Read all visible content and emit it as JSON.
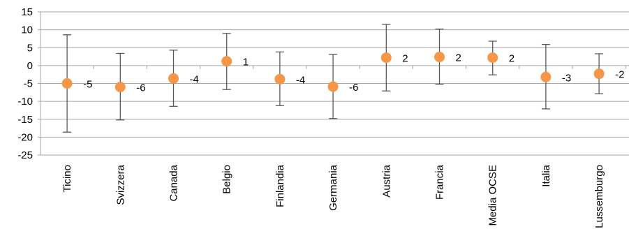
{
  "chart_data": {
    "type": "scatter",
    "title": "",
    "xlabel": "",
    "ylabel": "",
    "categories": [
      "Ticino",
      "Svizzera",
      "Canada",
      "Belgio",
      "Finlandia",
      "Germania",
      "Austria",
      "Francia",
      "Media OCSE",
      "Italia",
      "Lussemburgo"
    ],
    "values": [
      -5,
      -6,
      -3.6,
      1.2,
      -3.8,
      -5.9,
      2.2,
      2.4,
      2.2,
      -3.2,
      -2.3
    ],
    "error_bars": {
      "upper": [
        8.6,
        3.4,
        4.3,
        9.0,
        3.8,
        3.1,
        11.5,
        10.2,
        6.8,
        5.9,
        3.3
      ],
      "lower": [
        -18.6,
        -15.2,
        -11.4,
        -6.7,
        -11.2,
        -14.8,
        -7.1,
        -5.2,
        -2.6,
        -12.1,
        -7.9
      ]
    },
    "data_labels": [
      "-5",
      "-6",
      "-4",
      "1",
      "-4",
      "-6",
      "2",
      "2",
      "2",
      "-3",
      "-2"
    ],
    "ylim": [
      -25,
      15
    ],
    "yticks": [
      15,
      10,
      5,
      0,
      -5,
      -10,
      -15,
      -20,
      -25
    ],
    "grid": true,
    "legend": "none",
    "colors": {
      "marker": "#f79646",
      "error_bar": "#595959",
      "gridline": "#a6a6a6",
      "axis": "#a6a6a6"
    }
  }
}
